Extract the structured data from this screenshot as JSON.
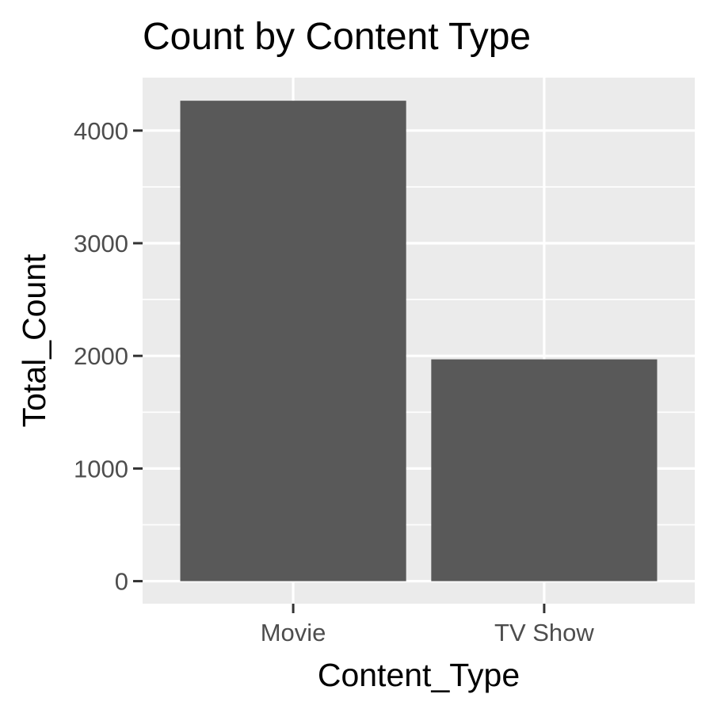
{
  "chart_data": {
    "type": "bar",
    "title": "Count by Content Type",
    "xlabel": "Content_Type",
    "ylabel": "Total_Count",
    "categories": [
      "Movie",
      "TV Show"
    ],
    "values": [
      4265,
      1969
    ],
    "ylim": [
      -200,
      4470
    ],
    "yticks": [
      0,
      1000,
      2000,
      3000,
      4000
    ],
    "grid": true,
    "legend": "none",
    "colors": {
      "bar": "#595959",
      "panel": "#ebebeb",
      "grid": "#ffffff",
      "tick": "#333333",
      "tick_label": "#4d4d4d"
    }
  }
}
